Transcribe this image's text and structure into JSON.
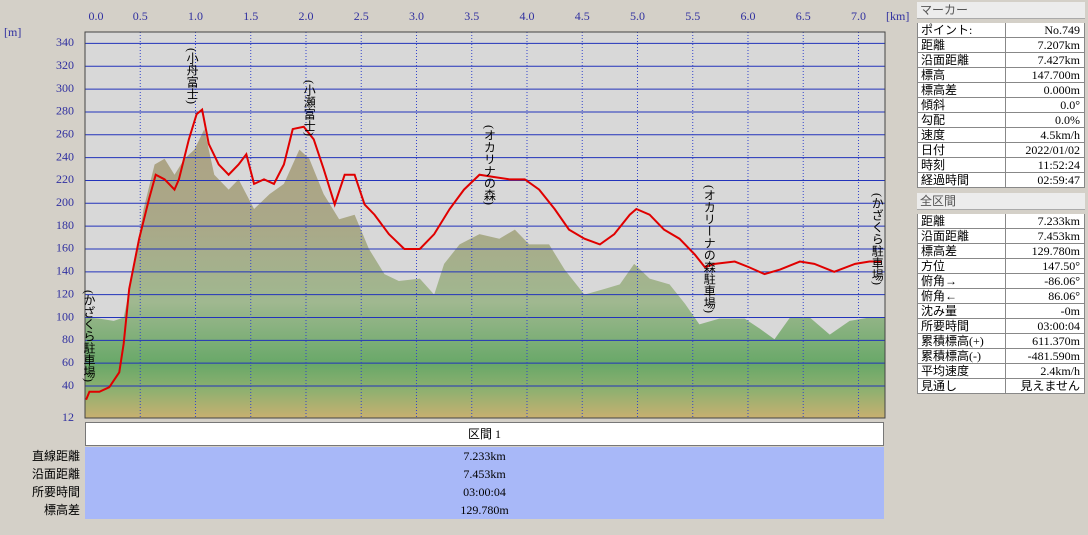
{
  "chart_data": {
    "type": "line",
    "xlabel": "[km]",
    "ylabel": "[m]",
    "xlim": [
      0,
      7.24
    ],
    "ylim": [
      12,
      350
    ],
    "xticks": [
      {
        "value": 0,
        "label": "0.0"
      },
      0.5,
      {
        "value": 1,
        "label": "1.0"
      },
      1.5,
      {
        "value": 2,
        "label": "2.0"
      },
      2.5,
      {
        "value": 3,
        "label": "3.0"
      },
      3.5,
      {
        "value": 4,
        "label": "4.0"
      },
      4.5,
      {
        "value": 5,
        "label": "5.0"
      },
      5.5,
      {
        "value": 6,
        "label": "6.0"
      },
      6.5,
      {
        "value": 7,
        "label": "7.0"
      }
    ],
    "yticks": [
      12,
      40,
      60,
      80,
      100,
      120,
      140,
      160,
      180,
      200,
      220,
      240,
      260,
      280,
      300,
      320,
      340
    ],
    "grid": true,
    "series": [
      {
        "kind": "area",
        "color": "#b4a888",
        "x": [
          0.0,
          0.13,
          0.26,
          0.35,
          0.44,
          0.53,
          0.63,
          0.72,
          0.81,
          0.9,
          0.99,
          1.08,
          1.17,
          1.3,
          1.39,
          1.53,
          1.67,
          1.8,
          1.94,
          2.03,
          2.16,
          2.3,
          2.44,
          2.57,
          2.71,
          2.84,
          3.03,
          3.16,
          3.25,
          3.39,
          3.57,
          3.75,
          3.89,
          4.02,
          4.2,
          4.34,
          4.52,
          4.7,
          4.84,
          4.97,
          5.11,
          5.29,
          5.43,
          5.56,
          5.74,
          5.97,
          6.11,
          6.24,
          6.38,
          6.56,
          6.74,
          6.92,
          7.1,
          7.24
        ],
        "values": [
          100,
          99,
          97,
          100,
          142,
          195,
          234,
          239,
          225,
          239,
          247,
          265,
          225,
          212,
          221,
          195,
          208,
          217,
          247,
          239,
          208,
          186,
          190,
          160,
          138,
          132,
          134,
          120,
          147,
          164,
          173,
          169,
          177,
          164,
          164,
          142,
          120,
          125,
          129,
          147,
          134,
          129,
          112,
          94,
          99,
          99,
          90,
          81,
          100,
          100,
          85,
          97,
          100,
          100
        ]
      },
      {
        "kind": "line",
        "color": "#e00000",
        "x": [
          0.01,
          0.04,
          0.13,
          0.22,
          0.31,
          0.35,
          0.4,
          0.49,
          0.58,
          0.64,
          0.72,
          0.81,
          0.85,
          0.94,
          1.01,
          1.06,
          1.12,
          1.21,
          1.3,
          1.39,
          1.46,
          1.53,
          1.62,
          1.71,
          1.8,
          1.88,
          1.98,
          2.07,
          2.16,
          2.26,
          2.35,
          2.44,
          2.53,
          2.62,
          2.75,
          2.89,
          3.03,
          3.16,
          3.3,
          3.43,
          3.57,
          3.7,
          3.84,
          3.98,
          4.11,
          4.25,
          4.38,
          4.52,
          4.66,
          4.79,
          4.93,
          4.99,
          5.11,
          5.24,
          5.38,
          5.52,
          5.61,
          5.7,
          5.88,
          6.01,
          6.15,
          6.29,
          6.47,
          6.6,
          6.78,
          6.97,
          7.1,
          7.21
        ],
        "values": [
          28,
          35,
          35,
          39,
          52,
          77,
          125,
          169,
          204,
          225,
          221,
          212,
          221,
          256,
          278,
          282,
          252,
          234,
          225,
          234,
          243,
          217,
          221,
          217,
          234,
          265,
          267,
          256,
          230,
          199,
          225,
          225,
          199,
          190,
          173,
          160,
          160,
          173,
          195,
          212,
          225,
          223,
          221,
          221,
          212,
          195,
          177,
          169,
          164,
          173,
          190,
          195,
          190,
          177,
          169,
          155,
          144,
          147,
          149,
          144,
          138,
          142,
          149,
          147,
          140,
          147,
          149,
          149
        ]
      }
    ],
    "annotations": [
      {
        "text": "(かざくら駐車場)",
        "x": 0.0
      },
      {
        "text": "(小舟富士)",
        "x": 0.97
      },
      {
        "text": "(小瀬富士)",
        "x": 2.03
      },
      {
        "text": "(オカリナの森)",
        "x": 3.66
      },
      {
        "text": "(オカリーナの森駐車場)",
        "x": 5.65
      },
      {
        "text": "(かざくら駐車場)",
        "x": 7.17
      }
    ]
  },
  "section_table": {
    "header": "区間 1",
    "rows": [
      [
        "直線距離",
        "7.233km"
      ],
      [
        "沿面距離",
        "7.453km"
      ],
      [
        "所要時間",
        "03:00:04"
      ],
      [
        "標高差",
        "129.780m"
      ]
    ]
  },
  "marker_panel": {
    "title": "マーカー",
    "rows": [
      [
        "ポイント:",
        "No.749"
      ],
      [
        "距離",
        "7.207km"
      ],
      [
        "沿面距離",
        "7.427km"
      ],
      [
        "標高",
        "147.700m"
      ],
      [
        "標高差",
        "0.000m"
      ],
      [
        "傾斜",
        "0.0°"
      ],
      [
        "勾配",
        "0.0%"
      ],
      [
        "速度",
        "4.5km/h"
      ],
      [
        "日付",
        "2022/01/02"
      ],
      [
        "時刻",
        "11:52:24"
      ],
      [
        "経過時間",
        "02:59:47"
      ]
    ]
  },
  "total_panel": {
    "title": "全区間",
    "rows": [
      [
        "距離",
        "7.233km"
      ],
      [
        "沿面距離",
        "7.453km"
      ],
      [
        "標高差",
        "129.780m"
      ],
      [
        "方位",
        "147.50°"
      ],
      [
        "俯角→",
        "-86.06°"
      ],
      [
        "俯角←",
        "86.06°"
      ],
      [
        "沈み量",
        "-0m"
      ],
      [
        "所要時間",
        "03:00:04"
      ],
      [
        "累積標高(+)",
        "611.370m"
      ],
      [
        "累積標高(-)",
        "-481.590m"
      ],
      [
        "平均速度",
        "2.4km/h"
      ],
      [
        "見通し",
        "見えません"
      ]
    ]
  }
}
